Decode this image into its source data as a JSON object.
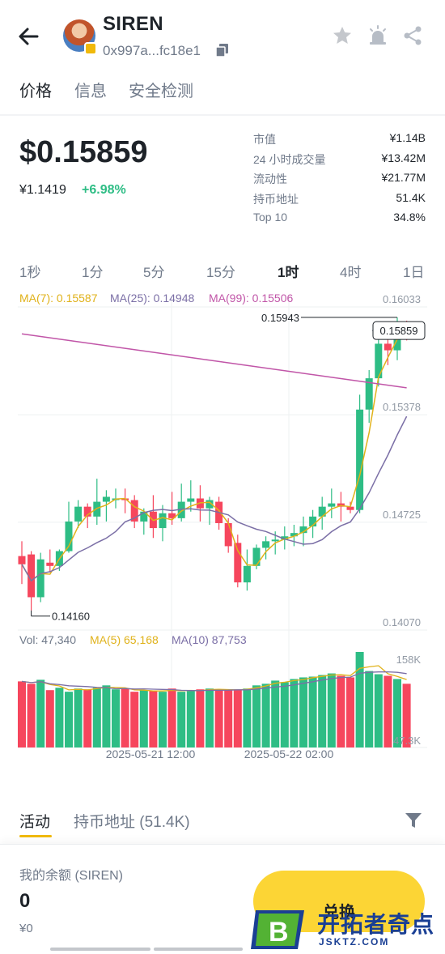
{
  "header": {
    "title": "SIREN",
    "address": "0x997a...fc18e1"
  },
  "tabs": [
    "价格",
    "信息",
    "安全检测"
  ],
  "price": {
    "value": "$0.15859",
    "cny": "¥1.1419",
    "change": "+6.98%"
  },
  "stats": [
    {
      "label": "市值",
      "value": "¥1.14B"
    },
    {
      "label": "24 小时成交量",
      "value": "¥13.42M"
    },
    {
      "label": "流动性",
      "value": "¥21.77M"
    },
    {
      "label": "持币地址",
      "value": "51.4K"
    },
    {
      "label": "Top 10",
      "value": "34.8%"
    }
  ],
  "intervals": [
    "1秒",
    "1分",
    "5分",
    "15分",
    "1时",
    "4时",
    "1日"
  ],
  "active_interval": "1时",
  "ma_legend": [
    {
      "text": "MA(7): 0.15587",
      "color": "#e0b21a"
    },
    {
      "text": "MA(25): 0.14948",
      "color": "#7b6fa6"
    },
    {
      "text": "MA(99): 0.15506",
      "color": "#c156a8"
    }
  ],
  "vol_legend": [
    {
      "text": "Vol: 47,340",
      "color": "#707a8a"
    },
    {
      "text": "MA(5) 65,168",
      "color": "#e0b21a"
    },
    {
      "text": "MA(10) 87,753",
      "color": "#7b6fa6"
    }
  ],
  "colors": {
    "up": "#2ebd85",
    "down": "#f6465d",
    "accent": "#fcd535"
  },
  "chart_data": {
    "type": "candlestick",
    "ylim": [
      0.1407,
      0.16033
    ],
    "price_ticks": [
      "0.16033",
      "0.15378",
      "0.14725",
      "0.14070"
    ],
    "volume_ticks": [
      "158K",
      "47.3K"
    ],
    "x_ticks": [
      "2025-05-21 12:00",
      "2025-05-22 02:00"
    ],
    "high_label": "0.15943",
    "low_label": "0.14160",
    "last_price_label": "0.15859",
    "candles": [
      {
        "o": 0.1449,
        "h": 0.1458,
        "l": 0.1432,
        "c": 0.1444
      },
      {
        "o": 0.145,
        "h": 0.1452,
        "l": 0.1416,
        "c": 0.1424
      },
      {
        "o": 0.1424,
        "h": 0.1451,
        "l": 0.1421,
        "c": 0.1447
      },
      {
        "o": 0.1445,
        "h": 0.1453,
        "l": 0.1439,
        "c": 0.1443
      },
      {
        "o": 0.1443,
        "h": 0.1453,
        "l": 0.144,
        "c": 0.1452
      },
      {
        "o": 0.1452,
        "h": 0.1482,
        "l": 0.1451,
        "c": 0.147
      },
      {
        "o": 0.147,
        "h": 0.1483,
        "l": 0.1466,
        "c": 0.1479
      },
      {
        "o": 0.1479,
        "h": 0.1481,
        "l": 0.1466,
        "c": 0.1473
      },
      {
        "o": 0.1473,
        "h": 0.1496,
        "l": 0.1468,
        "c": 0.1482
      },
      {
        "o": 0.1482,
        "h": 0.1489,
        "l": 0.147,
        "c": 0.1485
      },
      {
        "o": 0.1484,
        "h": 0.149,
        "l": 0.1478,
        "c": 0.1484
      },
      {
        "o": 0.1484,
        "h": 0.149,
        "l": 0.1475,
        "c": 0.1483
      },
      {
        "o": 0.1483,
        "h": 0.1486,
        "l": 0.1466,
        "c": 0.147
      },
      {
        "o": 0.147,
        "h": 0.1478,
        "l": 0.1462,
        "c": 0.1476
      },
      {
        "o": 0.1476,
        "h": 0.1486,
        "l": 0.146,
        "c": 0.1466
      },
      {
        "o": 0.1466,
        "h": 0.148,
        "l": 0.1458,
        "c": 0.1475
      },
      {
        "o": 0.1475,
        "h": 0.1488,
        "l": 0.1468,
        "c": 0.1472
      },
      {
        "o": 0.1472,
        "h": 0.1493,
        "l": 0.147,
        "c": 0.1482
      },
      {
        "o": 0.1482,
        "h": 0.1495,
        "l": 0.1476,
        "c": 0.1484
      },
      {
        "o": 0.1484,
        "h": 0.1492,
        "l": 0.147,
        "c": 0.1478
      },
      {
        "o": 0.1478,
        "h": 0.1485,
        "l": 0.1468,
        "c": 0.1483
      },
      {
        "o": 0.1482,
        "h": 0.1485,
        "l": 0.1465,
        "c": 0.1469
      },
      {
        "o": 0.1469,
        "h": 0.1472,
        "l": 0.1451,
        "c": 0.1455
      },
      {
        "o": 0.1457,
        "h": 0.1462,
        "l": 0.143,
        "c": 0.1433
      },
      {
        "o": 0.1433,
        "h": 0.1453,
        "l": 0.1428,
        "c": 0.1443
      },
      {
        "o": 0.1443,
        "h": 0.1456,
        "l": 0.1441,
        "c": 0.1454
      },
      {
        "o": 0.1454,
        "h": 0.1461,
        "l": 0.1447,
        "c": 0.1458
      },
      {
        "o": 0.1458,
        "h": 0.1464,
        "l": 0.145,
        "c": 0.1459
      },
      {
        "o": 0.1459,
        "h": 0.1467,
        "l": 0.1453,
        "c": 0.1461
      },
      {
        "o": 0.1461,
        "h": 0.1468,
        "l": 0.1455,
        "c": 0.1463
      },
      {
        "o": 0.1463,
        "h": 0.1473,
        "l": 0.1455,
        "c": 0.1467
      },
      {
        "o": 0.1467,
        "h": 0.1477,
        "l": 0.146,
        "c": 0.1473
      },
      {
        "o": 0.1473,
        "h": 0.1485,
        "l": 0.1465,
        "c": 0.1479
      },
      {
        "o": 0.1479,
        "h": 0.149,
        "l": 0.1472,
        "c": 0.1481
      },
      {
        "o": 0.1481,
        "h": 0.1488,
        "l": 0.147,
        "c": 0.1479
      },
      {
        "o": 0.1479,
        "h": 0.1482,
        "l": 0.1475,
        "c": 0.1477
      },
      {
        "o": 0.1477,
        "h": 0.1547,
        "l": 0.1475,
        "c": 0.1538
      },
      {
        "o": 0.1538,
        "h": 0.1562,
        "l": 0.153,
        "c": 0.1557
      },
      {
        "o": 0.1557,
        "h": 0.1582,
        "l": 0.1552,
        "c": 0.1578
      },
      {
        "o": 0.1578,
        "h": 0.1586,
        "l": 0.1565,
        "c": 0.1574
      },
      {
        "o": 0.1574,
        "h": 0.1594,
        "l": 0.1568,
        "c": 0.159
      },
      {
        "o": 0.159,
        "h": 0.1592,
        "l": 0.158,
        "c": 0.1586
      }
    ],
    "volumes": [
      83,
      80,
      85,
      72,
      75,
      70,
      74,
      73,
      75,
      78,
      73,
      74,
      70,
      72,
      71,
      70,
      74,
      70,
      71,
      73,
      74,
      72,
      72,
      73,
      74,
      78,
      80,
      84,
      82,
      86,
      88,
      89,
      91,
      93,
      90,
      88,
      120,
      96,
      92,
      90,
      86,
      80
    ]
  },
  "activity": {
    "tabs": [
      "活动",
      "持币地址 (51.4K)"
    ]
  },
  "balance": {
    "label": "我的余额 (SIREN)",
    "value": "0",
    "cny": "¥0",
    "swap_label": "兑换"
  },
  "watermark": {
    "text": "开拓者奇点",
    "sub": "JSKTZ.COM"
  }
}
